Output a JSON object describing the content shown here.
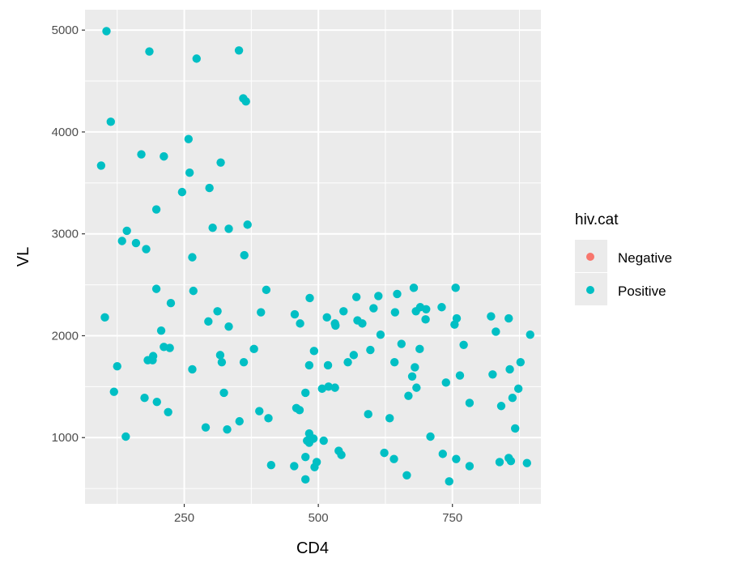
{
  "chart_data": {
    "type": "scatter",
    "xlabel": "CD4",
    "ylabel": "VL",
    "xlim": [
      65,
      915
    ],
    "ylim": [
      350,
      5200
    ],
    "x_ticks": [
      250,
      500,
      750
    ],
    "y_ticks": [
      1000,
      2000,
      3000,
      4000,
      5000
    ],
    "x_tick_labels": [
      "250",
      "500",
      "750"
    ],
    "y_tick_labels": [
      "1000",
      "2000",
      "3000",
      "4000",
      "5000"
    ],
    "grid": true,
    "legend": {
      "title": "hiv.cat",
      "placement": "right",
      "entries": [
        {
          "label": "Negative",
          "color": "#F8766D"
        },
        {
          "label": "Positive",
          "color": "#00BFC4"
        }
      ]
    },
    "colors": {
      "panel_bg": "#EBEBEB",
      "grid": "#FFFFFF",
      "legend_key_bg": "#EBEBEB"
    },
    "series": [
      {
        "name": "Negative",
        "color": "#F8766D",
        "points": []
      },
      {
        "name": "Positive",
        "color": "#00BFC4",
        "points": [
          [
            105,
            4990
          ],
          [
            185,
            4790
          ],
          [
            273,
            4720
          ],
          [
            352,
            4800
          ],
          [
            360,
            4330
          ],
          [
            365,
            4300
          ],
          [
            113,
            4100
          ],
          [
            258,
            3930
          ],
          [
            95,
            3670
          ],
          [
            170,
            3780
          ],
          [
            212,
            3760
          ],
          [
            318,
            3700
          ],
          [
            260,
            3600
          ],
          [
            297,
            3450
          ],
          [
            246,
            3410
          ],
          [
            198,
            3240
          ],
          [
            303,
            3060
          ],
          [
            333,
            3050
          ],
          [
            368,
            3090
          ],
          [
            143,
            3030
          ],
          [
            134,
            2930
          ],
          [
            160,
            2910
          ],
          [
            179,
            2850
          ],
          [
            265,
            2770
          ],
          [
            362,
            2790
          ],
          [
            198,
            2460
          ],
          [
            267,
            2440
          ],
          [
            403,
            2450
          ],
          [
            225,
            2320
          ],
          [
            102,
            2180
          ],
          [
            312,
            2240
          ],
          [
            393,
            2230
          ],
          [
            295,
            2140
          ],
          [
            333,
            2090
          ],
          [
            207,
            2050
          ],
          [
            456,
            2210
          ],
          [
            484,
            2370
          ],
          [
            466,
            2120
          ],
          [
            516,
            2180
          ],
          [
            532,
            2100
          ],
          [
            531,
            2120
          ],
          [
            547,
            2240
          ],
          [
            571,
            2380
          ],
          [
            573,
            2150
          ],
          [
            582,
            2120
          ],
          [
            603,
            2270
          ],
          [
            612,
            2390
          ],
          [
            616,
            2010
          ],
          [
            643,
            2230
          ],
          [
            647,
            2410
          ],
          [
            678,
            2470
          ],
          [
            682,
            2240
          ],
          [
            690,
            2280
          ],
          [
            700,
            2160
          ],
          [
            701,
            2260
          ],
          [
            730,
            2280
          ],
          [
            754,
            2110
          ],
          [
            756,
            2470
          ],
          [
            758,
            2170
          ],
          [
            822,
            2190
          ],
          [
            831,
            2040
          ],
          [
            855,
            2170
          ],
          [
            895,
            2010
          ],
          [
            125,
            1700
          ],
          [
            182,
            1760
          ],
          [
            192,
            1800
          ],
          [
            191,
            1760
          ],
          [
            212,
            1890
          ],
          [
            223,
            1880
          ],
          [
            265,
            1670
          ],
          [
            317,
            1810
          ],
          [
            320,
            1740
          ],
          [
            361,
            1740
          ],
          [
            380,
            1870
          ],
          [
            483,
            1710
          ],
          [
            492,
            1850
          ],
          [
            518,
            1710
          ],
          [
            555,
            1740
          ],
          [
            566,
            1810
          ],
          [
            597,
            1860
          ],
          [
            642,
            1740
          ],
          [
            655,
            1920
          ],
          [
            680,
            1690
          ],
          [
            675,
            1600
          ],
          [
            689,
            1870
          ],
          [
            738,
            1540
          ],
          [
            764,
            1610
          ],
          [
            771,
            1910
          ],
          [
            782,
            1340
          ],
          [
            825,
            1620
          ],
          [
            841,
            1310
          ],
          [
            857,
            1670
          ],
          [
            862,
            1390
          ],
          [
            873,
            1480
          ],
          [
            877,
            1740
          ],
          [
            119,
            1450
          ],
          [
            176,
            1390
          ],
          [
            199,
            1350
          ],
          [
            220,
            1250
          ],
          [
            324,
            1440
          ],
          [
            390,
            1260
          ],
          [
            407,
            1190
          ],
          [
            459,
            1290
          ],
          [
            465,
            1270
          ],
          [
            476,
            1440
          ],
          [
            507,
            1480
          ],
          [
            519,
            1500
          ],
          [
            531,
            1490
          ],
          [
            593,
            1230
          ],
          [
            633,
            1190
          ],
          [
            668,
            1410
          ],
          [
            683,
            1490
          ],
          [
            141,
            1010
          ],
          [
            290,
            1100
          ],
          [
            330,
            1080
          ],
          [
            353,
            1160
          ],
          [
            483,
            1040
          ],
          [
            479,
            970
          ],
          [
            483,
            950
          ],
          [
            491,
            990
          ],
          [
            510,
            970
          ],
          [
            709,
            1010
          ],
          [
            867,
            1090
          ],
          [
            412,
            730
          ],
          [
            455,
            720
          ],
          [
            476,
            810
          ],
          [
            493,
            710
          ],
          [
            497,
            760
          ],
          [
            538,
            870
          ],
          [
            543,
            830
          ],
          [
            623,
            850
          ],
          [
            641,
            790
          ],
          [
            665,
            630
          ],
          [
            732,
            840
          ],
          [
            757,
            790
          ],
          [
            782,
            720
          ],
          [
            838,
            760
          ],
          [
            855,
            800
          ],
          [
            859,
            770
          ],
          [
            889,
            750
          ],
          [
            476,
            590
          ],
          [
            744,
            570
          ]
        ]
      }
    ]
  }
}
